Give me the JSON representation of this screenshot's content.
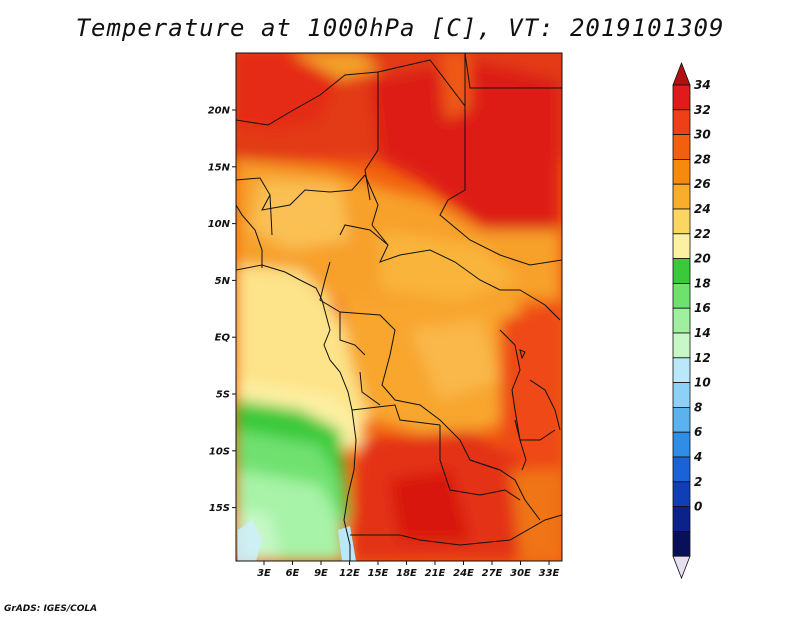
{
  "title": "Temperature at 1000hPa [C], VT: 2019101309",
  "footer": "GrADS: IGES/COLA",
  "map": {
    "variable": "Temperature",
    "level": "1000hPa",
    "units": "C",
    "valid_time": "2019101309",
    "lat_labels": [
      "20N",
      "15N",
      "10N",
      "5N",
      "EQ",
      "5S",
      "10S",
      "15S"
    ],
    "lon_labels": [
      "3E",
      "6E",
      "9E",
      "12E",
      "15E",
      "18E",
      "21E",
      "24E",
      "27E",
      "30E",
      "33E"
    ]
  },
  "colorbar": {
    "labels": [
      "34",
      "32",
      "30",
      "28",
      "26",
      "24",
      "22",
      "20",
      "18",
      "16",
      "14",
      "12",
      "10",
      "8",
      "6",
      "4",
      "2",
      "0"
    ],
    "colors": [
      "#e11b1b",
      "#ee3f18",
      "#f2600f",
      "#f58a0d",
      "#f8ad2c",
      "#fbd662",
      "#fdf0a2",
      "#3bc93b",
      "#6fe16f",
      "#9ef09e",
      "#c8f7c8",
      "#b9e8fb",
      "#8fd0f7",
      "#5cb2ef",
      "#2f8de6",
      "#1a63d6",
      "#0f3fb5",
      "#0b228a",
      "#09105a"
    ],
    "cap_top_color": "#b20f0f",
    "cap_bottom_color": "#e8e0f2"
  }
}
